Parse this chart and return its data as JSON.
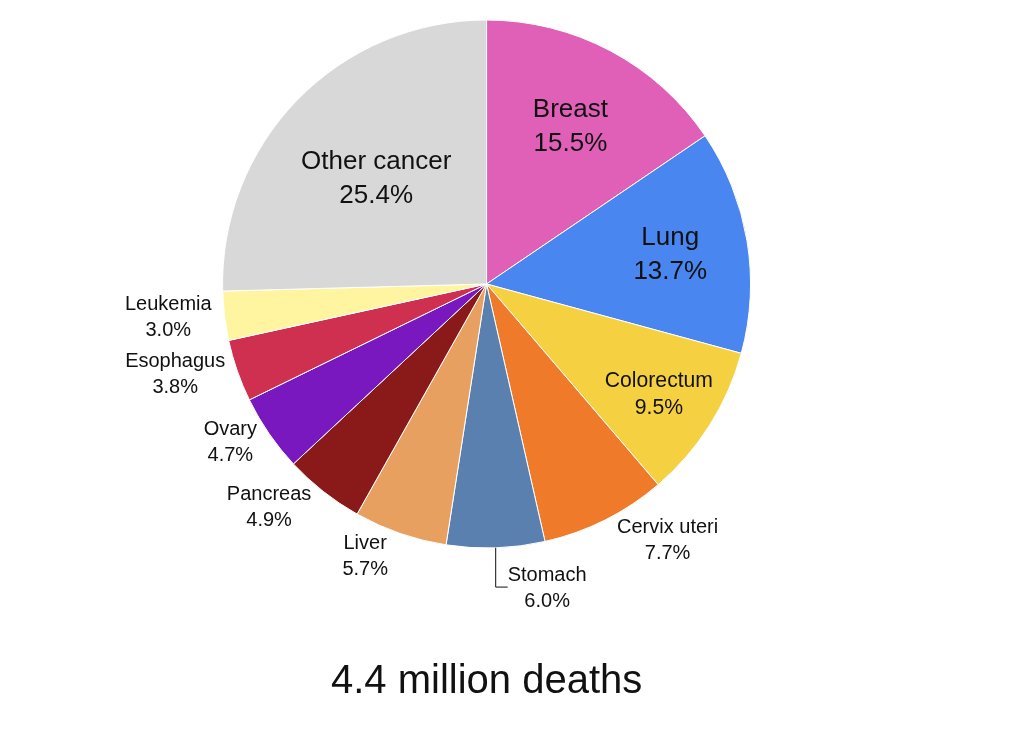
{
  "chart_data": {
    "type": "pie",
    "title": "4.4 million deaths",
    "categories": [
      "Breast",
      "Lung",
      "Colorectum",
      "Cervix uteri",
      "Stomach",
      "Liver",
      "Pancreas",
      "Ovary",
      "Esophagus",
      "Leukemia",
      "Other cancer"
    ],
    "values": [
      15.5,
      13.7,
      9.5,
      7.7,
      6.0,
      5.7,
      4.9,
      4.7,
      3.8,
      3.0,
      25.4
    ],
    "value_labels": [
      "15.5%",
      "13.7%",
      "9.5%",
      "7.7%",
      "6.0%",
      "5.7%",
      "4.9%",
      "4.7%",
      "3.8%",
      "3.0%",
      "25.4%"
    ],
    "colors": [
      "#e060b8",
      "#4a86f0",
      "#f5d040",
      "#ee7a2a",
      "#5a80b0",
      "#e8a060",
      "#8a1a1a",
      "#7a18c0",
      "#d03050",
      "#fff5a0",
      "#d8d8d8"
    ],
    "legend": false
  }
}
